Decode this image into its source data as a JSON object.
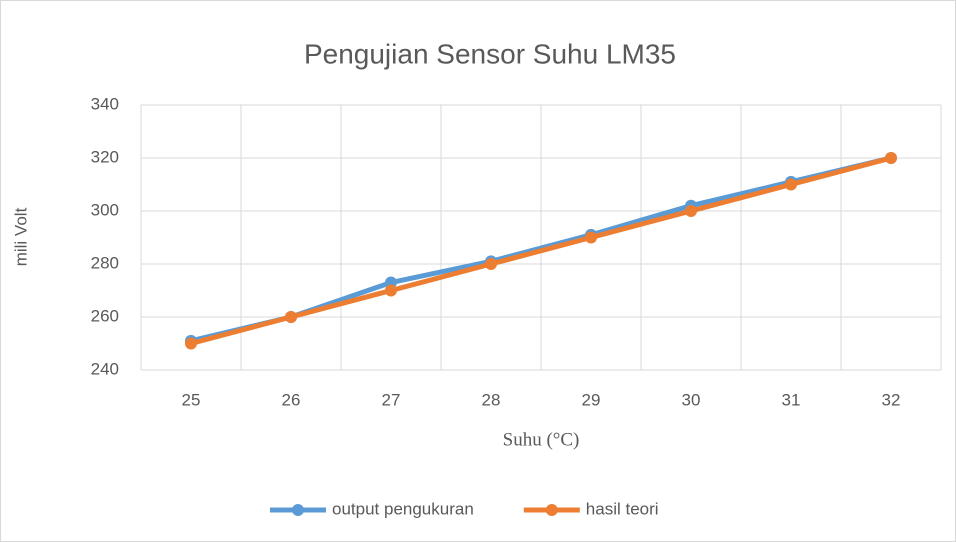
{
  "chart_data": {
    "type": "line",
    "title": "Pengujian Sensor Suhu LM35",
    "x_label": "Suhu (°C)",
    "y_label": "mili Volt",
    "categories": [
      "25",
      "26",
      "27",
      "28",
      "29",
      "30",
      "31",
      "32"
    ],
    "series": [
      {
        "name": "output pengukuran",
        "color": "#5b9bd5",
        "values": [
          251,
          260,
          273,
          281,
          291,
          302,
          311,
          320
        ]
      },
      {
        "name": "hasil teori",
        "color": "#ed7d31",
        "values": [
          250,
          260,
          270,
          280,
          290,
          300,
          310,
          320
        ]
      }
    ],
    "ylim": [
      240,
      340
    ],
    "yticks": [
      240,
      260,
      280,
      300,
      320,
      340
    ],
    "grid": true,
    "legend": "bottom"
  }
}
